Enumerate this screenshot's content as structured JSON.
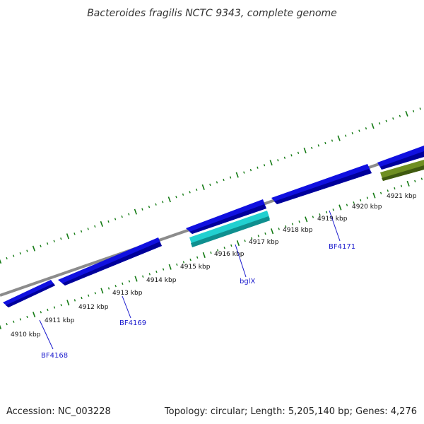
{
  "map": {
    "title": "Bacteroides fragilis NCTC 9343, complete genome",
    "accession": "Accession: NC_003228",
    "summary": "Topology: circular; Length: 5,205,140 bp; Genes: 4,276"
  },
  "colors": {
    "backbone": "#8c8c8c",
    "tick": "#137a13",
    "forward_gene": "#1010e0",
    "highlight_gene": "#22d0d0",
    "reverse_gene": "#6f8f22",
    "label": "#1a1acd"
  },
  "kbp_labels": [
    "4910 kbp",
    "4911 kbp",
    "4912 kbp",
    "4913 kbp",
    "4914 kbp",
    "4915 kbp",
    "4916 kbp",
    "4917 kbp",
    "4918 kbp",
    "4919 kbp",
    "4920 kbp",
    "4921 kbp"
  ],
  "gene_labels": [
    "BF4168",
    "BF4169",
    "bglX",
    "BF4171"
  ]
}
